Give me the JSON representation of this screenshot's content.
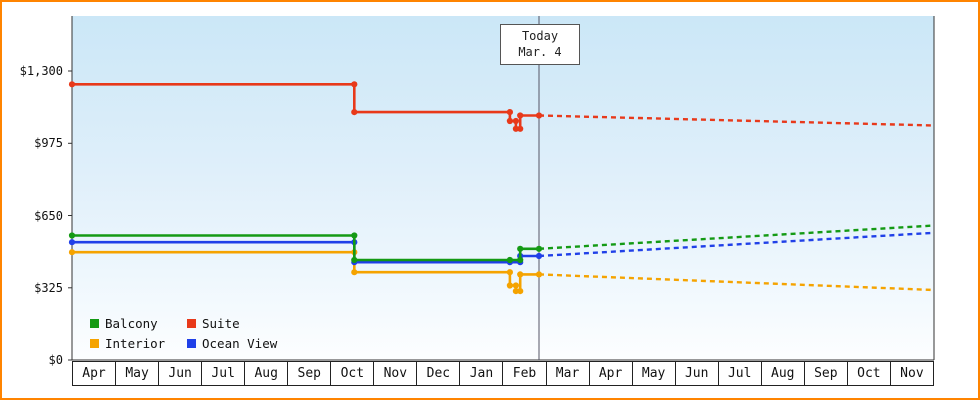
{
  "frame": {
    "border_color": "#ff8400"
  },
  "chart_data": {
    "type": "line",
    "title": "",
    "y_axis": {
      "min": 0,
      "max": 1300,
      "ticks": [
        {
          "label": "$1,300",
          "value": 1300
        },
        {
          "label": "$975",
          "value": 975
        },
        {
          "label": "$650",
          "value": 650
        },
        {
          "label": "$325",
          "value": 325
        },
        {
          "label": "$0",
          "value": 0
        }
      ]
    },
    "x_axis": {
      "months": [
        "Apr",
        "May",
        "Jun",
        "Jul",
        "Aug",
        "Sep",
        "Oct",
        "Nov",
        "Dec",
        "Jan",
        "Feb",
        "Mar",
        "Apr",
        "May",
        "Jun",
        "Jul",
        "Aug",
        "Sep",
        "Oct",
        "Nov"
      ]
    },
    "today_marker": {
      "line1": "Today",
      "line2": "Mar. 4",
      "t": 10.835
    },
    "series": [
      {
        "name": "Interior",
        "color": "#f5a300",
        "solid": [
          [
            0,
            485
          ],
          [
            6.55,
            485
          ],
          [
            6.55,
            395
          ],
          [
            10.16,
            395
          ],
          [
            10.16,
            335
          ],
          [
            10.3,
            335
          ],
          [
            10.3,
            310
          ],
          [
            10.4,
            310
          ],
          [
            10.4,
            385
          ],
          [
            10.835,
            385
          ]
        ],
        "dashed": [
          [
            10.835,
            385
          ],
          [
            20,
            315
          ]
        ]
      },
      {
        "name": "Ocean View",
        "color": "#2040e8",
        "solid": [
          [
            0,
            530
          ],
          [
            6.55,
            530
          ],
          [
            6.55,
            440
          ],
          [
            10.16,
            440
          ],
          [
            10.4,
            440
          ],
          [
            10.4,
            468
          ],
          [
            10.835,
            468
          ]
        ],
        "dashed": [
          [
            10.835,
            468
          ],
          [
            20,
            572
          ]
        ]
      },
      {
        "name": "Balcony",
        "color": "#149a14",
        "solid": [
          [
            0,
            560
          ],
          [
            6.55,
            560
          ],
          [
            6.55,
            450
          ],
          [
            10.16,
            450
          ],
          [
            10.4,
            450
          ],
          [
            10.4,
            500
          ],
          [
            10.835,
            500
          ]
        ],
        "dashed": [
          [
            10.835,
            500
          ],
          [
            20,
            605
          ]
        ]
      },
      {
        "name": "Suite",
        "color": "#e8391a",
        "solid": [
          [
            0,
            1240
          ],
          [
            6.55,
            1240
          ],
          [
            6.55,
            1115
          ],
          [
            10.16,
            1115
          ],
          [
            10.16,
            1075
          ],
          [
            10.3,
            1075
          ],
          [
            10.3,
            1040
          ],
          [
            10.4,
            1040
          ],
          [
            10.4,
            1100
          ],
          [
            10.835,
            1100
          ]
        ],
        "dashed": [
          [
            10.835,
            1100
          ],
          [
            20,
            1055
          ]
        ]
      }
    ],
    "legend": [
      {
        "label": "Balcony",
        "color": "#149a14"
      },
      {
        "label": "Suite",
        "color": "#e8391a"
      },
      {
        "label": "Interior",
        "color": "#f5a300"
      },
      {
        "label": "Ocean View",
        "color": "#2040e8"
      }
    ]
  }
}
